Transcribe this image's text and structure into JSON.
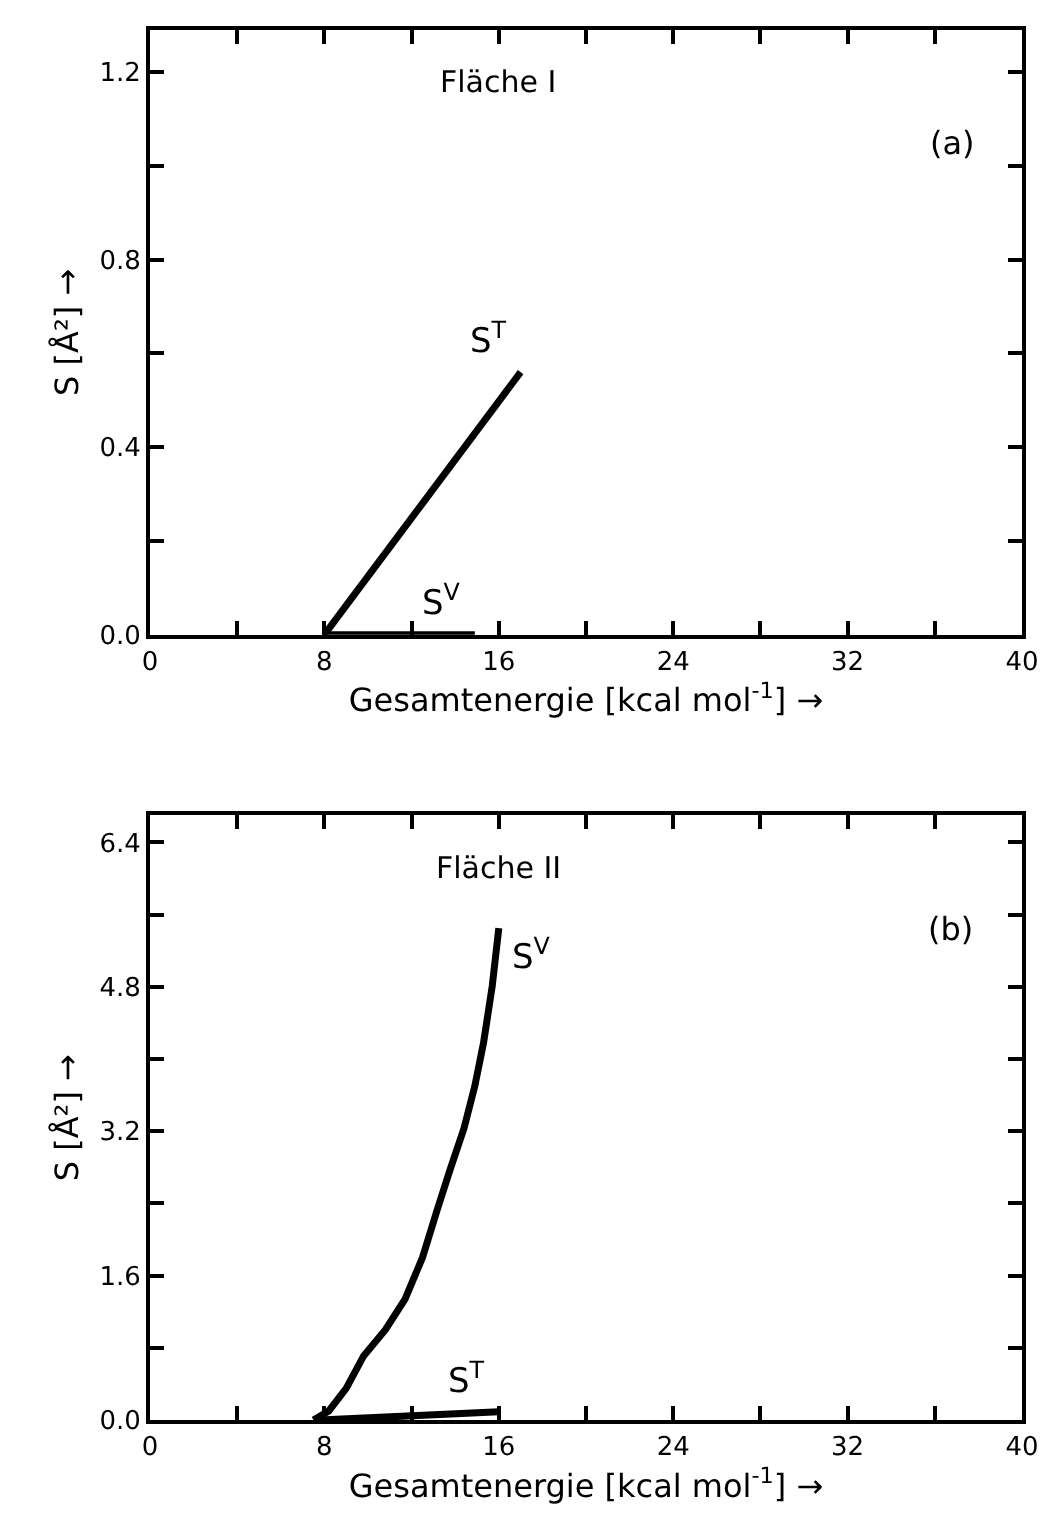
{
  "chart_data": [
    {
      "type": "line",
      "xlabel": "Gesamtenergie [kcal mol$^{-1}$] →",
      "ylabel": "S [Å²] →",
      "annotations": [
        "Fläche I",
        "(a)"
      ],
      "xlim": [
        0,
        40
      ],
      "ylim": [
        0,
        1.29
      ],
      "xticks": [
        0,
        {
          "value": 4,
          "label": null
        },
        8,
        {
          "value": 12,
          "label": null
        },
        16,
        {
          "value": 20,
          "label": null
        },
        24,
        {
          "value": 28,
          "label": null
        },
        32,
        {
          "value": 36,
          "label": null
        },
        40
      ],
      "yticks": [
        {
          "value": 0,
          "label": "0.0"
        },
        {
          "value": 0.2,
          "label": null
        },
        {
          "value": 0.4,
          "label": "0.4"
        },
        {
          "value": 0.6,
          "label": null
        },
        {
          "value": 0.8,
          "label": "0.8"
        },
        {
          "value": 1.0,
          "label": null
        },
        {
          "value": 1.2,
          "label": "1.2"
        }
      ],
      "legend": false,
      "marker": "none",
      "line_style": "solid",
      "series": [
        {
          "name": "S$^{T}$",
          "color": "#000000",
          "x": [
            8,
            17
          ],
          "values": [
            0,
            0.56
          ]
        },
        {
          "name": "S$^{V}$",
          "color": "#000000",
          "x": [
            8,
            14.9
          ],
          "values": [
            0,
            0
          ]
        }
      ]
    },
    {
      "type": "line",
      "xlabel": "Gesamtenergie [kcal mol$^{-1}$] →",
      "ylabel": "S [Å²] →",
      "annotations": [
        "Fläche II",
        "(b)"
      ],
      "xlim": [
        0,
        40
      ],
      "ylim": [
        0,
        6.7
      ],
      "xticks": [
        0,
        {
          "value": 4,
          "label": null
        },
        8,
        {
          "value": 12,
          "label": null
        },
        16,
        {
          "value": 20,
          "label": null
        },
        24,
        {
          "value": 28,
          "label": null
        },
        32,
        {
          "value": 36,
          "label": null
        },
        40
      ],
      "yticks": [
        {
          "value": 0,
          "label": "0.0"
        },
        {
          "value": 0.8,
          "label": null
        },
        {
          "value": 1.6,
          "label": "1.6"
        },
        {
          "value": 2.4,
          "label": null
        },
        {
          "value": 3.2,
          "label": "3.2"
        },
        {
          "value": 4.0,
          "label": null
        },
        {
          "value": 4.8,
          "label": "4.8"
        },
        {
          "value": 5.6,
          "label": null
        },
        {
          "value": 6.4,
          "label": "6.4"
        }
      ],
      "legend": false,
      "marker": "none",
      "line_style": "solid",
      "series": [
        {
          "name": "S$^{V}$",
          "color": "#000000",
          "x": [
            7.5,
            8.2,
            9.0,
            9.8,
            10.8,
            11.7,
            12.5,
            13.2,
            13.8,
            14.4,
            14.9,
            15.3,
            15.7,
            16.0
          ],
          "values": [
            0,
            0.1,
            0.35,
            0.71,
            1.0,
            1.34,
            1.8,
            2.35,
            2.8,
            3.23,
            3.7,
            4.18,
            4.81,
            5.45
          ]
        },
        {
          "name": "S$^{T}$",
          "color": "#000000",
          "x": [
            7.8,
            16.0
          ],
          "values": [
            0,
            0.09
          ]
        }
      ]
    }
  ]
}
